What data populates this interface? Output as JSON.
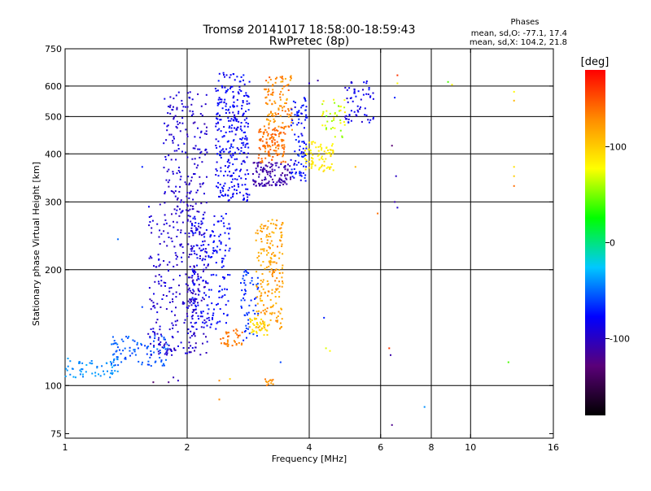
{
  "chart_data": {
    "type": "scatter",
    "title": "Tromsø 20141017 18:58:00-18:59:43",
    "subtitle": "RwPretec (8p)",
    "xlabel": "Frequency [MHz]",
    "ylabel": "Stationary phase Virtual Height [km]",
    "x_scale": "log",
    "y_scale": "log",
    "xlim": [
      1,
      16
    ],
    "ylim": [
      73,
      750
    ],
    "x_ticks": [
      1,
      2,
      4,
      6,
      8,
      10,
      16
    ],
    "x_tick_labels": [
      "1",
      "2",
      "4",
      "6",
      "8",
      "10",
      "16"
    ],
    "y_ticks": [
      75,
      100,
      200,
      300,
      400,
      500,
      600,
      750
    ],
    "y_tick_labels": [
      "75",
      "100",
      "200",
      "300",
      "400",
      "500",
      "600",
      "750"
    ],
    "x_gridlines": [
      2,
      4,
      6,
      8,
      10
    ],
    "y_gridlines": [
      100,
      200,
      300,
      400,
      500,
      600
    ],
    "grid": true,
    "info": {
      "heading": "Phases",
      "line_o": "mean, sd,O: -77.1, 17.4",
      "line_x": "mean, sd,X: 104.2, 21.8"
    },
    "colorbar": {
      "label": "[deg]",
      "range": [
        -180,
        180
      ],
      "ticks": [
        100,
        0,
        -100
      ],
      "tick_labels": [
        "100",
        "0",
        "-100"
      ],
      "colors": [
        "#000000",
        "#5a0078",
        "#0000ff",
        "#00c8ff",
        "#00ff00",
        "#ffff00",
        "#ff8c00",
        "#ff0000"
      ]
    },
    "clusters": [
      {
        "fmin": 1.0,
        "fmax": 1.35,
        "hmin": 105,
        "hmax": 118,
        "phase": -40,
        "spread": 10,
        "n": 60
      },
      {
        "fmin": 1.3,
        "fmax": 1.8,
        "hmin": 112,
        "hmax": 135,
        "phase": -55,
        "spread": 12,
        "n": 90
      },
      {
        "fmin": 1.6,
        "fmax": 2.1,
        "hmin": 120,
        "hmax": 300,
        "phase": -95,
        "spread": 14,
        "n": 240
      },
      {
        "fmin": 1.75,
        "fmax": 2.25,
        "hmin": 300,
        "hmax": 580,
        "phase": -95,
        "spread": 12,
        "n": 160
      },
      {
        "fmin": 2.0,
        "fmax": 2.25,
        "hmin": 120,
        "hmax": 300,
        "phase": -100,
        "spread": 12,
        "n": 110
      },
      {
        "fmin": 2.05,
        "fmax": 2.55,
        "hmin": 140,
        "hmax": 280,
        "phase": -78,
        "spread": 12,
        "n": 180
      },
      {
        "fmin": 2.35,
        "fmax": 2.85,
        "hmin": 300,
        "hmax": 650,
        "phase": -80,
        "spread": 14,
        "n": 300
      },
      {
        "fmin": 2.4,
        "fmax": 2.75,
        "hmin": 126,
        "hmax": 140,
        "phase": 135,
        "spread": 12,
        "n": 40
      },
      {
        "fmin": 2.7,
        "fmax": 3.0,
        "hmin": 130,
        "hmax": 200,
        "phase": -65,
        "spread": 12,
        "n": 60
      },
      {
        "fmin": 2.95,
        "fmax": 3.45,
        "hmin": 140,
        "hmax": 270,
        "phase": 120,
        "spread": 18,
        "n": 200
      },
      {
        "fmin": 2.85,
        "fmax": 3.2,
        "hmin": 135,
        "hmax": 150,
        "phase": 95,
        "spread": 12,
        "n": 40
      },
      {
        "fmin": 2.9,
        "fmax": 3.6,
        "hmin": 330,
        "hmax": 380,
        "phase": -110,
        "spread": 12,
        "n": 120
      },
      {
        "fmin": 3.0,
        "fmax": 3.5,
        "hmin": 380,
        "hmax": 470,
        "phase": 140,
        "spread": 14,
        "n": 120
      },
      {
        "fmin": 3.1,
        "fmax": 3.65,
        "hmin": 460,
        "hmax": 640,
        "phase": 130,
        "spread": 22,
        "n": 110
      },
      {
        "fmin": 3.6,
        "fmax": 3.95,
        "hmin": 340,
        "hmax": 560,
        "phase": -75,
        "spread": 15,
        "n": 90
      },
      {
        "fmin": 3.9,
        "fmax": 4.6,
        "hmin": 360,
        "hmax": 430,
        "phase": 85,
        "spread": 15,
        "n": 80
      },
      {
        "fmin": 4.3,
        "fmax": 4.9,
        "hmin": 440,
        "hmax": 560,
        "phase": 70,
        "spread": 30,
        "n": 40
      },
      {
        "fmin": 4.9,
        "fmax": 5.8,
        "hmin": 480,
        "hmax": 620,
        "phase": -85,
        "spread": 20,
        "n": 60
      },
      {
        "fmin": 3.1,
        "fmax": 3.3,
        "hmin": 100,
        "hmax": 104,
        "phase": 130,
        "spread": 20,
        "n": 12
      }
    ],
    "extra_points": [
      {
        "x": 2.4,
        "y": 103,
        "phase": 130
      },
      {
        "x": 2.55,
        "y": 104,
        "phase": 100
      },
      {
        "x": 2.4,
        "y": 92,
        "phase": 130
      },
      {
        "x": 4.4,
        "y": 125,
        "phase": 70
      },
      {
        "x": 4.5,
        "y": 123,
        "phase": 80
      },
      {
        "x": 4.35,
        "y": 150,
        "phase": -70
      },
      {
        "x": 6.3,
        "y": 125,
        "phase": 160
      },
      {
        "x": 6.35,
        "y": 120,
        "phase": -110
      },
      {
        "x": 6.4,
        "y": 79,
        "phase": -120
      },
      {
        "x": 7.7,
        "y": 88,
        "phase": -40
      },
      {
        "x": 6.5,
        "y": 300,
        "phase": -110
      },
      {
        "x": 6.6,
        "y": 290,
        "phase": -95
      },
      {
        "x": 6.4,
        "y": 420,
        "phase": -130
      },
      {
        "x": 6.6,
        "y": 640,
        "phase": 160
      },
      {
        "x": 6.6,
        "y": 610,
        "phase": 80
      },
      {
        "x": 6.5,
        "y": 560,
        "phase": -70
      },
      {
        "x": 6.55,
        "y": 350,
        "phase": -100
      },
      {
        "x": 9.0,
        "y": 605,
        "phase": 80
      },
      {
        "x": 8.8,
        "y": 615,
        "phase": 40
      },
      {
        "x": 12.8,
        "y": 580,
        "phase": 80
      },
      {
        "x": 12.8,
        "y": 550,
        "phase": 110
      },
      {
        "x": 12.8,
        "y": 370,
        "phase": 90
      },
      {
        "x": 12.8,
        "y": 350,
        "phase": 100
      },
      {
        "x": 12.8,
        "y": 330,
        "phase": 140
      },
      {
        "x": 12.4,
        "y": 115,
        "phase": 40
      },
      {
        "x": 5.9,
        "y": 280,
        "phase": 140
      },
      {
        "x": 1.35,
        "y": 240,
        "phase": -50
      },
      {
        "x": 1.55,
        "y": 370,
        "phase": -70
      },
      {
        "x": 1.55,
        "y": 160,
        "phase": -60
      },
      {
        "x": 1.8,
        "y": 102,
        "phase": -120
      },
      {
        "x": 1.85,
        "y": 105,
        "phase": -105
      },
      {
        "x": 1.9,
        "y": 103,
        "phase": -100
      },
      {
        "x": 1.65,
        "y": 102,
        "phase": -135
      },
      {
        "x": 3.4,
        "y": 115,
        "phase": -60
      },
      {
        "x": 4.0,
        "y": 610,
        "phase": -100
      },
      {
        "x": 4.2,
        "y": 620,
        "phase": -110
      },
      {
        "x": 5.2,
        "y": 370,
        "phase": 110
      }
    ]
  }
}
